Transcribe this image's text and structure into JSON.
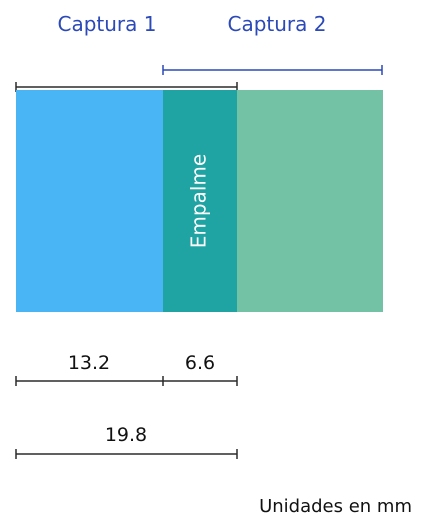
{
  "labels": {
    "capture1": "Captura 1",
    "capture2": "Captura 2",
    "overlap": "Empalme",
    "units": "Unidades en mm"
  },
  "measurements": {
    "capture1_only": "13.2",
    "overlap": "6.6",
    "capture1_total": "19.8"
  },
  "colors": {
    "capture1": "#4AB5F5",
    "overlap": "#1FA3A3",
    "capture2": "#73C2A5",
    "capture_label": "#2B49B8",
    "dimension_line": "#2B2B2B",
    "text": "#111111"
  }
}
